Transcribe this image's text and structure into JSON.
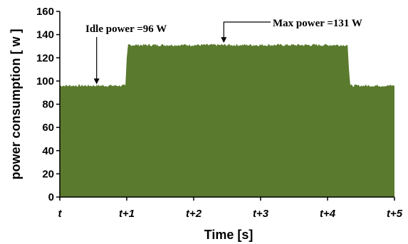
{
  "chart_data": {
    "type": "area",
    "xlabel": "Time [s]",
    "ylabel": "power consumption [ w ]",
    "x_ticks": [
      "t",
      "t+1",
      "t+2",
      "t+3",
      "t+4",
      "t+5"
    ],
    "y_ticks": [
      0,
      20,
      40,
      60,
      80,
      100,
      120,
      140,
      160
    ],
    "ylim": [
      0,
      160
    ],
    "xlim": [
      0,
      5
    ],
    "grid": false,
    "fill_color": "#5a7a2e",
    "series": [
      {
        "x": [
          0,
          0.5,
          0.98,
          1.0,
          1.02,
          2.0,
          3.0,
          4.0,
          4.3,
          4.32,
          4.34,
          5.0
        ],
        "values": [
          96,
          96,
          96,
          120,
          131,
          131,
          131,
          131,
          131,
          110,
          96,
          96
        ]
      }
    ],
    "annotations": [
      {
        "text": "Idle power =96 W",
        "x": 0.55,
        "y": 96
      },
      {
        "text": "Max  power =131 W",
        "x": 2.45,
        "y": 131
      }
    ]
  }
}
